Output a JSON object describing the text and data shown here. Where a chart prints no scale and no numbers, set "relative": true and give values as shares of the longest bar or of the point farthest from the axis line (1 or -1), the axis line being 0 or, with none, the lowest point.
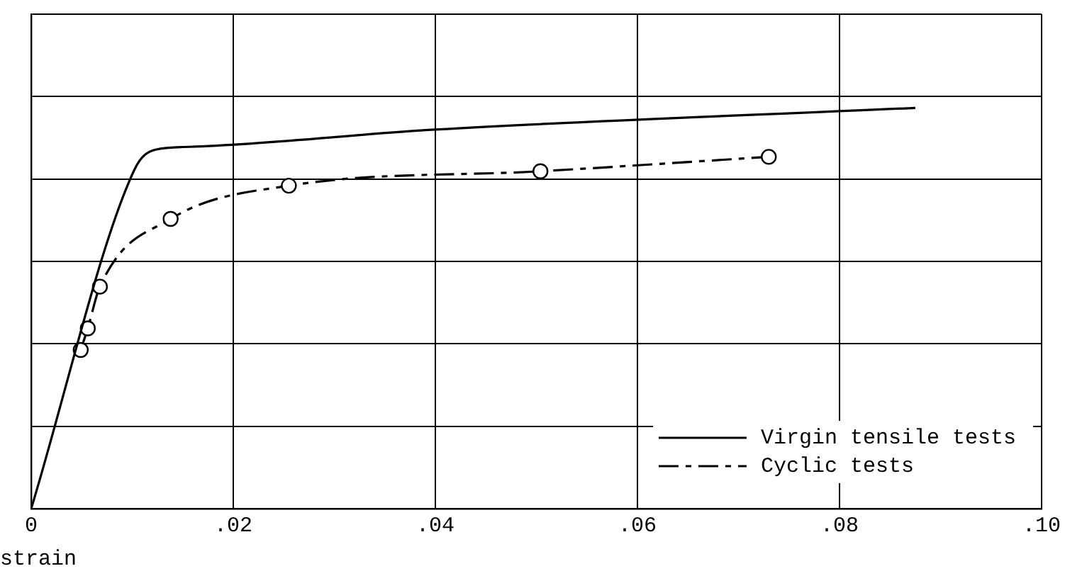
{
  "chart_data": {
    "type": "line",
    "xlabel": "strain",
    "relative": true,
    "xlim": [
      0,
      0.1
    ],
    "xticks": [
      {
        "value": 0,
        "label": "0"
      },
      {
        "value": 0.02,
        "label": ".02"
      },
      {
        "value": 0.04,
        "label": ".04"
      },
      {
        "value": 0.06,
        "label": ".06"
      },
      {
        "value": 0.08,
        "label": ".08"
      },
      {
        "value": 0.1,
        "label": ".10"
      }
    ],
    "grid": true,
    "legend": "bottom right",
    "series": [
      {
        "name": "Virgin tensile tests",
        "color": "#000000",
        "marker": "none",
        "line_style": "solid",
        "x": [
          0,
          0.0102,
          0.0123,
          0.0157,
          0.04,
          0.0875
        ],
        "values": [
          0,
          0.845,
          0.896,
          0.903,
          0.946,
          1.0
        ]
      },
      {
        "name": "Cyclic tests",
        "color": "#000000",
        "marker": "circle",
        "line_style": "dashed",
        "x": [
          0.0049,
          0.0056,
          0.0068,
          0.0138,
          0.0255,
          0.0504,
          0.073
        ],
        "values": [
          0.396,
          0.45,
          0.554,
          0.723,
          0.806,
          0.842,
          0.878
        ]
      }
    ]
  }
}
